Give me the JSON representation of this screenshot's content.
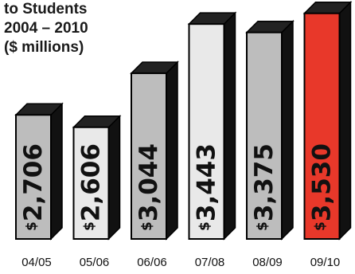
{
  "title_lines": [
    "to Students",
    "2004 – 2010",
    "($ millions)"
  ],
  "chart_data": {
    "type": "bar",
    "title": "to Students 2004 – 2010 ($ millions)",
    "categories": [
      "04/05",
      "05/06",
      "06/06",
      "07/08",
      "08/09",
      "09/10"
    ],
    "values": [
      2706,
      2606,
      3044,
      3443,
      3375,
      3530
    ],
    "value_labels": [
      "$2,706",
      "$2,606",
      "$3,044",
      "$3,443",
      "$3,375",
      "$3,530"
    ],
    "bar_colors": [
      "#bdbdbd",
      "#e9e9e9",
      "#bdbdbd",
      "#e9e9e9",
      "#bdbdbd",
      "#e8382a"
    ],
    "side_color": "#111111",
    "grid": false,
    "legend": "none"
  }
}
